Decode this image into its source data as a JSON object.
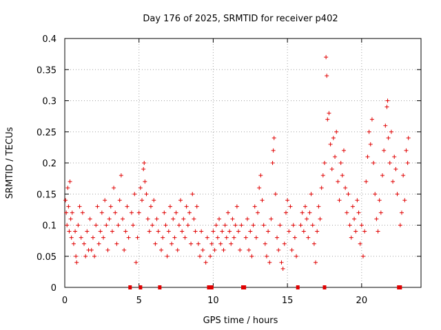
{
  "chart_data": {
    "type": "scatter",
    "title": "Day 176 of 2025, SRMTID for receiver p402",
    "xlabel": "GPS time / hours",
    "ylabel": "SRMTID / TECUs",
    "xlim": [
      0,
      24
    ],
    "ylim": [
      0,
      0.4
    ],
    "xticks": [
      0,
      5,
      10,
      15,
      20
    ],
    "yticks": [
      0,
      0.05,
      0.1,
      0.15,
      0.2,
      0.25,
      0.3,
      0.35,
      0.4
    ],
    "xtick_labels": [
      "0",
      "5",
      "10",
      "15",
      "20"
    ],
    "ytick_labels": [
      "0",
      "0.05",
      "0.1",
      "0.15",
      "0.2",
      "0.25",
      "0.3",
      "0.35",
      "0.4"
    ],
    "grid": true,
    "marker": "+",
    "color": "#e00000",
    "series": [
      {
        "name": "SRMTID",
        "points": [
          [
            0.05,
            0.14
          ],
          [
            0.1,
            0.12
          ],
          [
            0.15,
            0.1
          ],
          [
            0.2,
            0.16
          ],
          [
            0.25,
            0.13
          ],
          [
            0.3,
            0.09
          ],
          [
            0.35,
            0.17
          ],
          [
            0.4,
            0.11
          ],
          [
            0.45,
            0.08
          ],
          [
            0.5,
            0.12
          ],
          [
            0.6,
            0.07
          ],
          [
            0.7,
            0.09
          ],
          [
            0.75,
            0.05
          ],
          [
            0.8,
            0.04
          ],
          [
            0.9,
            0.1
          ],
          [
            1.0,
            0.13
          ],
          [
            1.1,
            0.08
          ],
          [
            1.2,
            0.12
          ],
          [
            1.3,
            0.07
          ],
          [
            1.4,
            0.05
          ],
          [
            1.5,
            0.09
          ],
          [
            1.6,
            0.06
          ],
          [
            1.7,
            0.11
          ],
          [
            1.8,
            0.06
          ],
          [
            1.9,
            0.08
          ],
          [
            2.0,
            0.05
          ],
          [
            2.1,
            0.1
          ],
          [
            2.2,
            0.13
          ],
          [
            2.3,
            0.07
          ],
          [
            2.4,
            0.09
          ],
          [
            2.5,
            0.12
          ],
          [
            2.6,
            0.08
          ],
          [
            2.7,
            0.14
          ],
          [
            2.8,
            0.1
          ],
          [
            2.9,
            0.06
          ],
          [
            3.0,
            0.11
          ],
          [
            3.1,
            0.13
          ],
          [
            3.2,
            0.09
          ],
          [
            3.3,
            0.16
          ],
          [
            3.4,
            0.12
          ],
          [
            3.5,
            0.07
          ],
          [
            3.6,
            0.1
          ],
          [
            3.7,
            0.14
          ],
          [
            3.8,
            0.18
          ],
          [
            3.9,
            0.11
          ],
          [
            4.0,
            0.06
          ],
          [
            4.1,
            0.09
          ],
          [
            4.2,
            0.13
          ],
          [
            4.3,
            0.08
          ],
          [
            4.5,
            0.12
          ],
          [
            4.6,
            0.1
          ],
          [
            4.7,
            0.15
          ],
          [
            4.8,
            0.04
          ],
          [
            4.9,
            0.08
          ],
          [
            5.0,
            0.12
          ],
          [
            5.1,
            0.16
          ],
          [
            5.2,
            0.14
          ],
          [
            5.3,
            0.19
          ],
          [
            5.35,
            0.2
          ],
          [
            5.4,
            0.17
          ],
          [
            5.5,
            0.15
          ],
          [
            5.6,
            0.11
          ],
          [
            5.7,
            0.09
          ],
          [
            5.8,
            0.13
          ],
          [
            5.9,
            0.1
          ],
          [
            6.0,
            0.14
          ],
          [
            6.1,
            0.07
          ],
          [
            6.2,
            0.11
          ],
          [
            6.3,
            0.09
          ],
          [
            6.5,
            0.06
          ],
          [
            6.6,
            0.08
          ],
          [
            6.7,
            0.12
          ],
          [
            6.8,
            0.1
          ],
          [
            6.9,
            0.05
          ],
          [
            7.0,
            0.09
          ],
          [
            7.1,
            0.13
          ],
          [
            7.2,
            0.07
          ],
          [
            7.3,
            0.11
          ],
          [
            7.4,
            0.08
          ],
          [
            7.5,
            0.12
          ],
          [
            7.6,
            0.06
          ],
          [
            7.7,
            0.1
          ],
          [
            7.8,
            0.14
          ],
          [
            7.9,
            0.09
          ],
          [
            8.0,
            0.11
          ],
          [
            8.1,
            0.08
          ],
          [
            8.2,
            0.13
          ],
          [
            8.3,
            0.1
          ],
          [
            8.4,
            0.12
          ],
          [
            8.5,
            0.07
          ],
          [
            8.6,
            0.15
          ],
          [
            8.7,
            0.11
          ],
          [
            8.8,
            0.09
          ],
          [
            8.9,
            0.13
          ],
          [
            9.0,
            0.07
          ],
          [
            9.1,
            0.05
          ],
          [
            9.2,
            0.09
          ],
          [
            9.3,
            0.06
          ],
          [
            9.5,
            0.04
          ],
          [
            9.6,
            0.08
          ],
          [
            9.8,
            0.05
          ],
          [
            9.9,
            0.07
          ],
          [
            10.0,
            0.09
          ],
          [
            10.1,
            0.06
          ],
          [
            10.2,
            0.1
          ],
          [
            10.3,
            0.08
          ],
          [
            10.4,
            0.11
          ],
          [
            10.5,
            0.07
          ],
          [
            10.6,
            0.09
          ],
          [
            10.7,
            0.06
          ],
          [
            10.8,
            0.1
          ],
          [
            10.9,
            0.08
          ],
          [
            11.0,
            0.12
          ],
          [
            11.1,
            0.09
          ],
          [
            11.2,
            0.07
          ],
          [
            11.3,
            0.11
          ],
          [
            11.4,
            0.08
          ],
          [
            11.5,
            0.1
          ],
          [
            11.6,
            0.13
          ],
          [
            11.7,
            0.09
          ],
          [
            11.8,
            0.06
          ],
          [
            11.9,
            0.1
          ],
          [
            12.2,
            0.08
          ],
          [
            12.3,
            0.11
          ],
          [
            12.4,
            0.06
          ],
          [
            12.5,
            0.09
          ],
          [
            12.6,
            0.05
          ],
          [
            12.7,
            0.1
          ],
          [
            12.8,
            0.13
          ],
          [
            12.9,
            0.08
          ],
          [
            13.0,
            0.12
          ],
          [
            13.1,
            0.16
          ],
          [
            13.2,
            0.18
          ],
          [
            13.3,
            0.14
          ],
          [
            13.4,
            0.1
          ],
          [
            13.5,
            0.07
          ],
          [
            13.6,
            0.05
          ],
          [
            13.7,
            0.09
          ],
          [
            13.8,
            0.04
          ],
          [
            13.9,
            0.11
          ],
          [
            14.0,
            0.2
          ],
          [
            14.05,
            0.22
          ],
          [
            14.1,
            0.24
          ],
          [
            14.2,
            0.15
          ],
          [
            14.3,
            0.08
          ],
          [
            14.4,
            0.06
          ],
          [
            14.5,
            0.1
          ],
          [
            14.6,
            0.04
          ],
          [
            14.7,
            0.03
          ],
          [
            14.8,
            0.07
          ],
          [
            14.9,
            0.12
          ],
          [
            15.0,
            0.14
          ],
          [
            15.1,
            0.09
          ],
          [
            15.2,
            0.13
          ],
          [
            15.3,
            0.06
          ],
          [
            15.4,
            0.1
          ],
          [
            15.5,
            0.08
          ],
          [
            15.6,
            0.05
          ],
          [
            15.9,
            0.1
          ],
          [
            16.0,
            0.12
          ],
          [
            16.1,
            0.09
          ],
          [
            16.2,
            0.13
          ],
          [
            16.3,
            0.11
          ],
          [
            16.4,
            0.08
          ],
          [
            16.5,
            0.12
          ],
          [
            16.6,
            0.15
          ],
          [
            16.7,
            0.1
          ],
          [
            16.8,
            0.07
          ],
          [
            16.9,
            0.04
          ],
          [
            17.0,
            0.09
          ],
          [
            17.1,
            0.13
          ],
          [
            17.2,
            0.11
          ],
          [
            17.3,
            0.16
          ],
          [
            17.4,
            0.18
          ],
          [
            17.5,
            0.2
          ],
          [
            17.6,
            0.37
          ],
          [
            17.65,
            0.34
          ],
          [
            17.7,
            0.27
          ],
          [
            17.8,
            0.28
          ],
          [
            17.9,
            0.23
          ],
          [
            18.0,
            0.19
          ],
          [
            18.1,
            0.24
          ],
          [
            18.2,
            0.21
          ],
          [
            18.3,
            0.25
          ],
          [
            18.4,
            0.17
          ],
          [
            18.5,
            0.14
          ],
          [
            18.6,
            0.2
          ],
          [
            18.7,
            0.18
          ],
          [
            18.8,
            0.22
          ],
          [
            18.9,
            0.16
          ],
          [
            19.0,
            0.12
          ],
          [
            19.1,
            0.15
          ],
          [
            19.2,
            0.1
          ],
          [
            19.3,
            0.08
          ],
          [
            19.4,
            0.13
          ],
          [
            19.5,
            0.11
          ],
          [
            19.6,
            0.09
          ],
          [
            19.7,
            0.14
          ],
          [
            19.8,
            0.12
          ],
          [
            19.9,
            0.07
          ],
          [
            20.0,
            0.1
          ],
          [
            20.1,
            0.05
          ],
          [
            20.2,
            0.09
          ],
          [
            20.3,
            0.17
          ],
          [
            20.4,
            0.21
          ],
          [
            20.5,
            0.25
          ],
          [
            20.6,
            0.23
          ],
          [
            20.7,
            0.27
          ],
          [
            20.8,
            0.2
          ],
          [
            20.9,
            0.15
          ],
          [
            21.0,
            0.11
          ],
          [
            21.1,
            0.09
          ],
          [
            21.2,
            0.14
          ],
          [
            21.3,
            0.12
          ],
          [
            21.4,
            0.18
          ],
          [
            21.5,
            0.22
          ],
          [
            21.6,
            0.26
          ],
          [
            21.7,
            0.29
          ],
          [
            21.75,
            0.3
          ],
          [
            21.8,
            0.24
          ],
          [
            21.9,
            0.2
          ],
          [
            22.0,
            0.25
          ],
          [
            22.1,
            0.17
          ],
          [
            22.2,
            0.21
          ],
          [
            22.3,
            0.19
          ],
          [
            22.4,
            0.15
          ],
          [
            22.6,
            0.1
          ],
          [
            22.7,
            0.12
          ],
          [
            22.8,
            0.18
          ],
          [
            22.9,
            0.14
          ],
          [
            23.0,
            0.22
          ],
          [
            23.1,
            0.2
          ],
          [
            23.15,
            0.24
          ]
        ]
      }
    ],
    "gap_markers_x": [
      4.4,
      5.1,
      6.4,
      9.7,
      9.9,
      12.0,
      12.1,
      15.7,
      17.5,
      22.5,
      22.6
    ]
  }
}
